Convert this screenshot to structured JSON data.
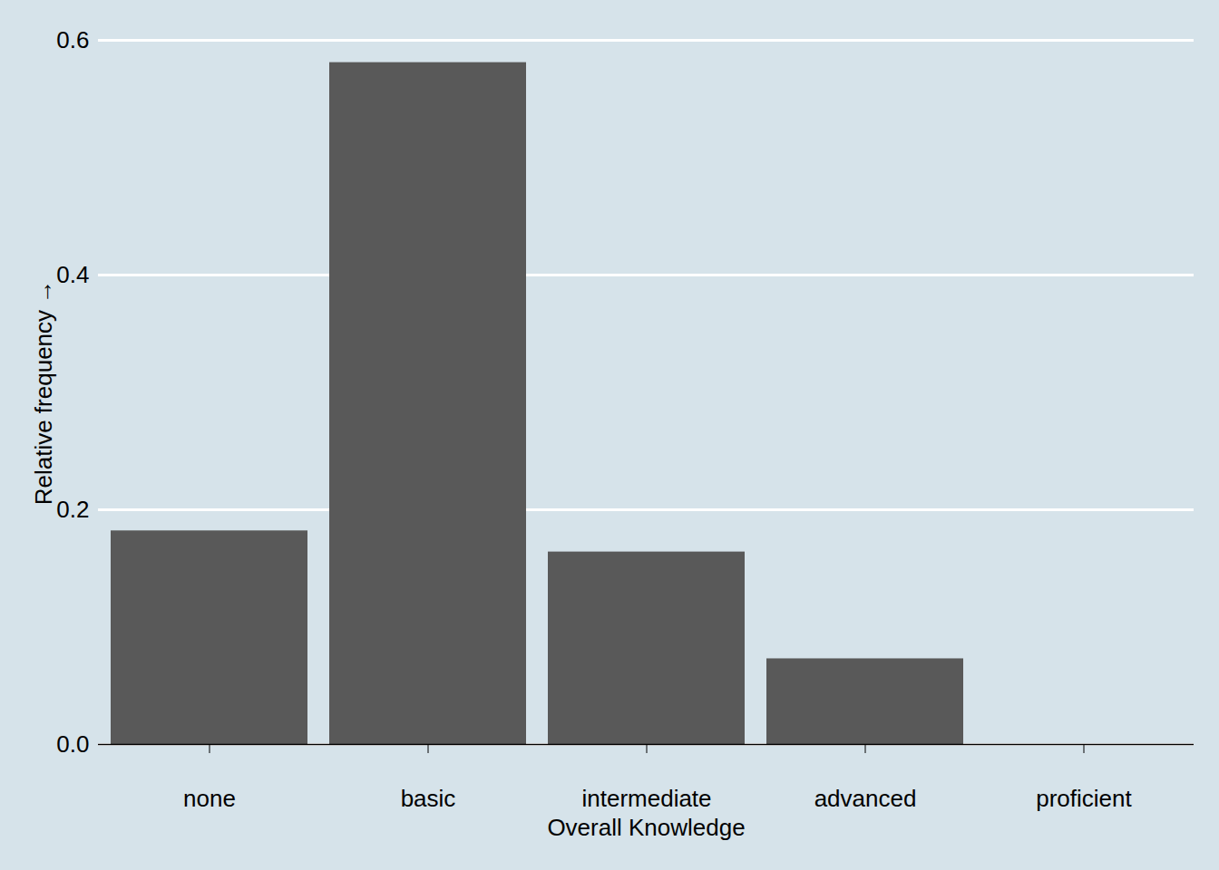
{
  "chart_data": {
    "type": "bar",
    "categories": [
      "none",
      "basic",
      "intermediate",
      "advanced",
      "proficient"
    ],
    "values": [
      0.182,
      0.581,
      0.164,
      0.073,
      0
    ],
    "color": "#595959",
    "x_label": "Overall Knowledge",
    "y_label": "Relative frequency",
    "ylim": [
      0,
      0.6
    ],
    "yticks": [
      {
        "value": 0,
        "label": "0.0"
      },
      0.2,
      0.4,
      0.6
    ],
    "grid": true
  }
}
